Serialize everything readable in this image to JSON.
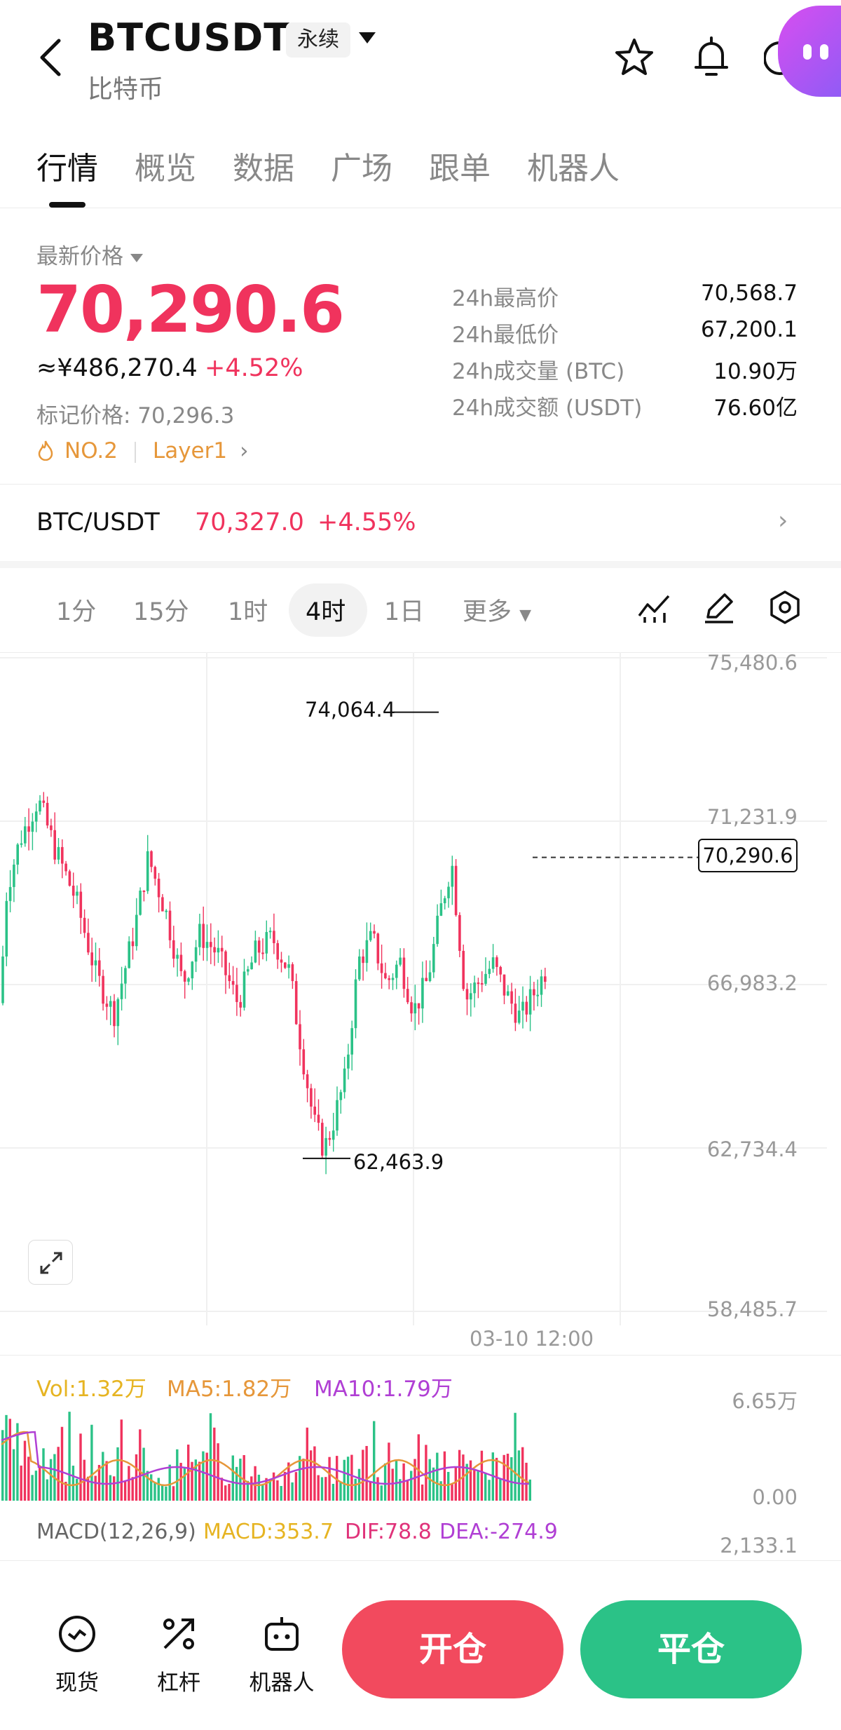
{
  "header": {
    "symbol": "BTCUSDT",
    "contract_tag": "永续",
    "subtitle": "比特币"
  },
  "tabs": [
    "行情",
    "概览",
    "数据",
    "广场",
    "跟单",
    "机器人"
  ],
  "price": {
    "label": "最新价格",
    "last": "70,290.6",
    "cny": "≈¥486,270.4",
    "change": "+4.52%",
    "mark": "标记价格: 70,296.3",
    "rank": "NO.2",
    "sector": "Layer1"
  },
  "stats": [
    {
      "label": "24h最高价",
      "value": "70,568.7"
    },
    {
      "label": "24h最低价",
      "value": "67,200.1"
    },
    {
      "label": "24h成交量 (BTC)",
      "value": "10.90万"
    },
    {
      "label": "24h成交额 (USDT)",
      "value": "76.60亿"
    }
  ],
  "spot_pair": {
    "name": "BTC/USDT",
    "price": "70,327.0",
    "change": "+4.55%"
  },
  "intervals": [
    "1分",
    "15分",
    "1时",
    "4时",
    "1日",
    "更多"
  ],
  "active_interval": "4时",
  "chart_data": {
    "type": "candlestick",
    "y_axis_labels": [
      "75,480.6",
      "71,231.9",
      "66,983.2",
      "62,734.4",
      "58,485.7"
    ],
    "ylim": [
      58485.7,
      75480.6
    ],
    "high_marker": "74,064.4",
    "low_marker": "62,463.9",
    "current_price_tag": "70,290.6",
    "x_axis_label": "03-10 12:00",
    "colors": {
      "up": "#2bc287",
      "down": "#f0335d"
    }
  },
  "volume": {
    "vol": "Vol:1.32万",
    "ma5": "MA5:1.82万",
    "ma10": "MA10:1.79万",
    "axis_top": "6.65万",
    "axis_bottom": "0.00"
  },
  "macd": {
    "name": "MACD(12,26,9)",
    "macd": "MACD:353.7",
    "dif": "DIF:78.8",
    "dea": "DEA:-274.9",
    "axis_top": "2,133.1"
  },
  "bottom_nav": [
    {
      "label": "现货",
      "icon": "spot-icon"
    },
    {
      "label": "杠杆",
      "icon": "leverage-icon"
    },
    {
      "label": "机器人",
      "icon": "robot-icon"
    }
  ],
  "actions": {
    "open": "开仓",
    "close": "平仓"
  }
}
